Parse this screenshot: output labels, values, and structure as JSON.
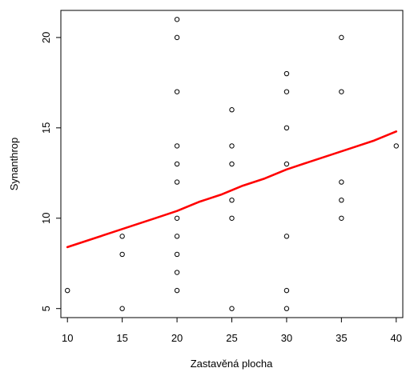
{
  "chart_data": {
    "type": "scatter",
    "title": "",
    "xlabel": "Zastavěná plocha",
    "ylabel": "Synanthrop",
    "xlim": [
      9.4,
      40.6
    ],
    "ylim": [
      4.5,
      21.5
    ],
    "x_ticks": [
      10,
      15,
      20,
      25,
      30,
      35,
      40
    ],
    "y_ticks": [
      5,
      10,
      15,
      20
    ],
    "grid": false,
    "legend": "none",
    "points": [
      {
        "x": 10,
        "y": 6
      },
      {
        "x": 15,
        "y": 5
      },
      {
        "x": 15,
        "y": 8
      },
      {
        "x": 15,
        "y": 9
      },
      {
        "x": 20,
        "y": 6
      },
      {
        "x": 20,
        "y": 7
      },
      {
        "x": 20,
        "y": 8
      },
      {
        "x": 20,
        "y": 9
      },
      {
        "x": 20,
        "y": 10
      },
      {
        "x": 20,
        "y": 12
      },
      {
        "x": 20,
        "y": 13
      },
      {
        "x": 20,
        "y": 14
      },
      {
        "x": 20,
        "y": 17
      },
      {
        "x": 20,
        "y": 20
      },
      {
        "x": 20,
        "y": 21
      },
      {
        "x": 25,
        "y": 5
      },
      {
        "x": 25,
        "y": 10
      },
      {
        "x": 25,
        "y": 11
      },
      {
        "x": 25,
        "y": 13
      },
      {
        "x": 25,
        "y": 14
      },
      {
        "x": 25,
        "y": 16
      },
      {
        "x": 30,
        "y": 5
      },
      {
        "x": 30,
        "y": 6
      },
      {
        "x": 30,
        "y": 9
      },
      {
        "x": 30,
        "y": 13
      },
      {
        "x": 30,
        "y": 15
      },
      {
        "x": 30,
        "y": 17
      },
      {
        "x": 30,
        "y": 18
      },
      {
        "x": 35,
        "y": 10
      },
      {
        "x": 35,
        "y": 11
      },
      {
        "x": 35,
        "y": 12
      },
      {
        "x": 35,
        "y": 17
      },
      {
        "x": 35,
        "y": 20
      },
      {
        "x": 40,
        "y": 14
      }
    ],
    "fit_line": [
      {
        "x": 10,
        "y": 8.4
      },
      {
        "x": 12,
        "y": 8.8
      },
      {
        "x": 14,
        "y": 9.2
      },
      {
        "x": 16,
        "y": 9.6
      },
      {
        "x": 18,
        "y": 10.0
      },
      {
        "x": 20,
        "y": 10.4
      },
      {
        "x": 22,
        "y": 10.9
      },
      {
        "x": 24,
        "y": 11.3
      },
      {
        "x": 26,
        "y": 11.8
      },
      {
        "x": 28,
        "y": 12.2
      },
      {
        "x": 30,
        "y": 12.7
      },
      {
        "x": 32,
        "y": 13.1
      },
      {
        "x": 34,
        "y": 13.5
      },
      {
        "x": 36,
        "y": 13.9
      },
      {
        "x": 38,
        "y": 14.3
      },
      {
        "x": 40,
        "y": 14.8
      }
    ],
    "colors": {
      "points": "#000000",
      "fit_line": "#ff0000",
      "axes": "#000000"
    }
  }
}
